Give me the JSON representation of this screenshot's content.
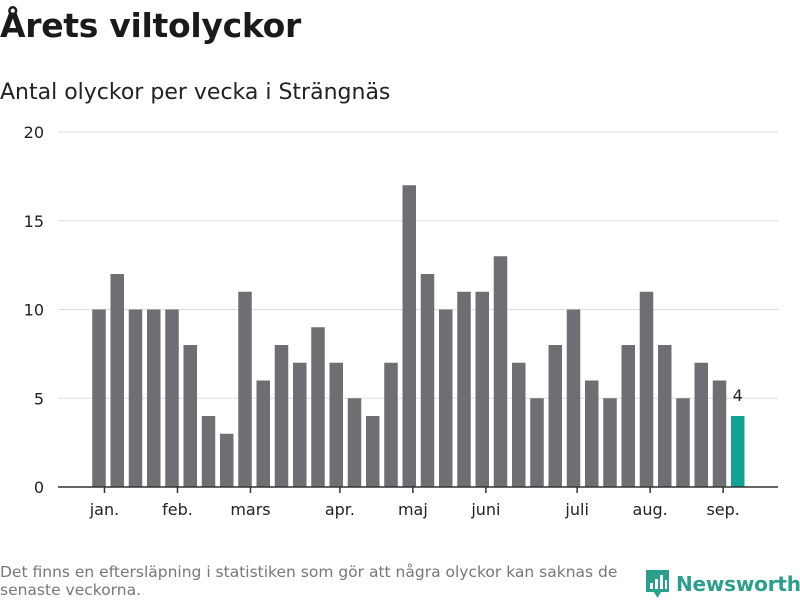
{
  "header": {
    "title": "Årets viltolyckor",
    "subtitle": "Antal olyckor per vecka i Strängnäs"
  },
  "footer": {
    "note": "Det finns en eftersläpning i statistiken som gör att några olyckor kan saknas de senaste veckorna.",
    "brand": "Newsworthy",
    "brand_icon": "newsworthy-logo-icon"
  },
  "colors": {
    "bar": "#6f6e73",
    "highlight": "#13a394",
    "grid": "#dddddd",
    "axis": "#333333",
    "text": "#222222",
    "brand": "#2a9f8c"
  },
  "chart_data": {
    "type": "bar",
    "title": "Antal olyckor per vecka i Strängnäs",
    "xlabel": "",
    "ylabel": "",
    "ylim": [
      0,
      20
    ],
    "yticks": [
      0,
      5,
      10,
      15,
      20
    ],
    "grid": true,
    "values": [
      10,
      12,
      10,
      10,
      10,
      8,
      4,
      3,
      11,
      6,
      8,
      7,
      9,
      7,
      5,
      4,
      7,
      17,
      12,
      10,
      11,
      11,
      13,
      7,
      5,
      8,
      10,
      6,
      5,
      8,
      11,
      8,
      5,
      7,
      6,
      4
    ],
    "highlight_index": 35,
    "data_labels": [
      {
        "index": 35,
        "text": "4"
      }
    ],
    "month_labels": [
      {
        "label": "jan.",
        "index": 0.3
      },
      {
        "label": "feb.",
        "index": 4.3
      },
      {
        "label": "mars",
        "index": 8.3
      },
      {
        "label": "apr.",
        "index": 13.2
      },
      {
        "label": "maj",
        "index": 17.2
      },
      {
        "label": "juni",
        "index": 21.2
      },
      {
        "label": "juli",
        "index": 26.2
      },
      {
        "label": "aug.",
        "index": 30.2
      },
      {
        "label": "sep.",
        "index": 34.2
      }
    ]
  }
}
